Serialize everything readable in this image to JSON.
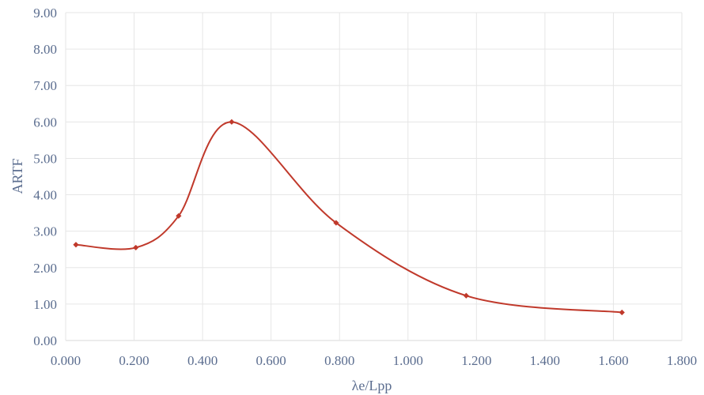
{
  "chart_data": {
    "type": "line",
    "title": "",
    "xlabel": "λe/Lpp",
    "ylabel": "ARTF",
    "xlim": [
      0,
      1.8
    ],
    "ylim": [
      0,
      9
    ],
    "x_ticks": [
      0.0,
      0.2,
      0.4,
      0.6,
      0.8,
      1.0,
      1.2,
      1.4,
      1.6,
      1.8
    ],
    "x_tick_labels": [
      "0.000",
      "0.200",
      "0.400",
      "0.600",
      "0.800",
      "1.000",
      "1.200",
      "1.400",
      "1.600",
      "1.800"
    ],
    "y_ticks": [
      0,
      1,
      2,
      3,
      4,
      5,
      6,
      7,
      8,
      9
    ],
    "y_tick_labels": [
      "0.00",
      "1.00",
      "2.00",
      "3.00",
      "4.00",
      "5.00",
      "6.00",
      "7.00",
      "8.00",
      "9.00"
    ],
    "grid": "both",
    "smooth": true,
    "color": "#c0392b",
    "series": [
      {
        "x": [
          0.03,
          0.205,
          0.33,
          0.485,
          0.79,
          1.17,
          1.625
        ],
        "y": [
          2.63,
          2.55,
          3.42,
          6.0,
          3.23,
          1.23,
          0.77
        ]
      }
    ]
  }
}
